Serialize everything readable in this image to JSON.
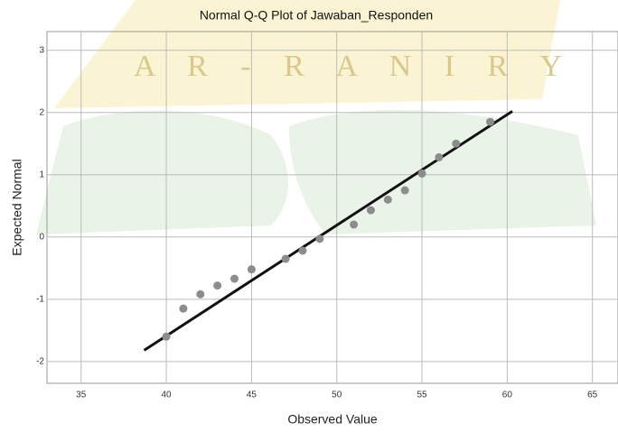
{
  "chart_data": {
    "type": "scatter",
    "title": "Normal Q-Q Plot of Jawaban_Responden",
    "x_label": "Observed Value",
    "y_label": "Expected Normal",
    "watermark": "A R - R A N I R Y",
    "xlim": [
      33,
      66.5
    ],
    "ylim": [
      -2.35,
      3.3
    ],
    "xticks": [
      35,
      40,
      45,
      50,
      55,
      60,
      65
    ],
    "yticks": [
      -2,
      -1,
      0,
      1,
      2,
      3
    ],
    "grid": true,
    "points": {
      "color": "#8c8c8c",
      "x": [
        40,
        41,
        42,
        43,
        44,
        45,
        47,
        48,
        49,
        51,
        52,
        53,
        54,
        55,
        56,
        57,
        59
      ],
      "values": [
        -1.6,
        -1.15,
        -0.92,
        -0.78,
        -0.67,
        -0.52,
        -0.35,
        -0.22,
        -0.03,
        0.2,
        0.43,
        0.6,
        0.75,
        1.02,
        1.28,
        1.5,
        1.85
      ]
    },
    "reference_line": {
      "color": "#111111",
      "x": [
        38.7,
        60.3
      ],
      "values": [
        -1.82,
        2.02
      ]
    }
  }
}
